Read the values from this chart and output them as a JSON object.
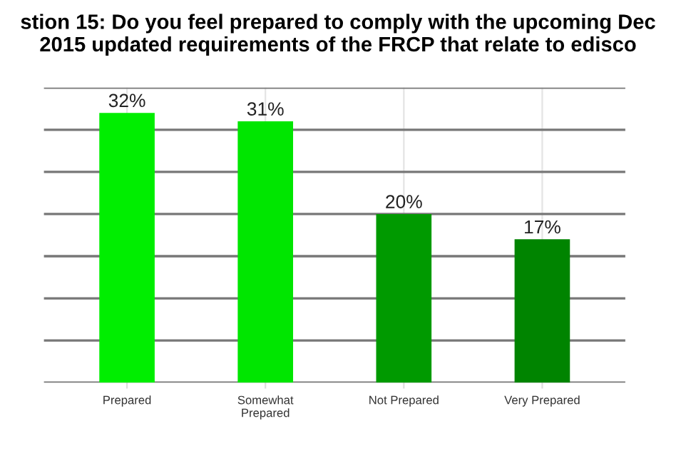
{
  "chart_data": {
    "type": "bar",
    "title": "stion 15: Do you feel prepared to comply with the upcoming Dec\n2015 updated requirements of the FRCP that relate to edisco",
    "categories": [
      "Prepared",
      "Somewhat\nPrepared",
      "Not Prepared",
      "Very Prepared"
    ],
    "values": [
      32,
      31,
      20,
      17
    ],
    "colors": [
      "#00ee00",
      "#00e600",
      "#009a00",
      "#008400"
    ],
    "value_labels": [
      "32%",
      "31%",
      "20%",
      "17%"
    ],
    "ylim": [
      0,
      35
    ],
    "yticks": [
      {
        "value": 0,
        "label": null
      },
      {
        "value": 5,
        "label": null
      },
      {
        "value": 10,
        "label": null
      },
      {
        "value": 15,
        "label": null
      },
      {
        "value": 20,
        "label": null
      },
      {
        "value": 25,
        "label": null
      },
      {
        "value": 30,
        "label": null
      },
      {
        "value": 35,
        "label": null
      }
    ],
    "grid": true,
    "legend": false
  }
}
